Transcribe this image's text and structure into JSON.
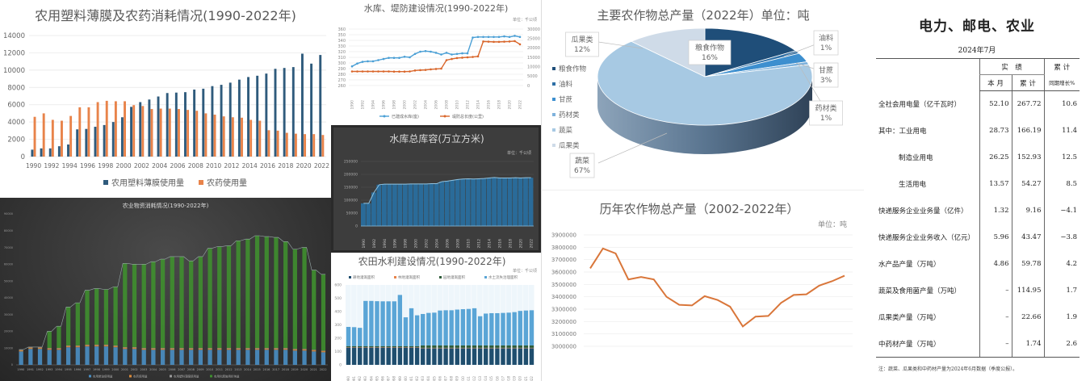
{
  "chart_data": [
    {
      "id": "film-pesticide",
      "type": "bar",
      "title": "农用塑料薄膜及农药消耗情况(1990-2022年)",
      "categories": [
        "1990",
        "1991",
        "1992",
        "1993",
        "1994",
        "1995",
        "1996",
        "1997",
        "1998",
        "1999",
        "2000",
        "2001",
        "2002",
        "2003",
        "2004",
        "2005",
        "2006",
        "2007",
        "2008",
        "2009",
        "2010",
        "2011",
        "2012",
        "2013",
        "2014",
        "2015",
        "2016",
        "2017",
        "2018",
        "2019",
        "2020",
        "2021",
        "2022"
      ],
      "ylim": [
        0,
        14000
      ],
      "yticks": [
        "0",
        "2000",
        "4000",
        "6000",
        "8000",
        "10000",
        "12000",
        "14000"
      ],
      "grid": true,
      "legend": "bottom",
      "series": [
        {
          "name": "农用塑料薄膜使用量",
          "color": "#2f5b7c",
          "values": [
            800,
            950,
            950,
            1200,
            1400,
            3150,
            3200,
            3450,
            3650,
            4000,
            4550,
            5750,
            6300,
            6600,
            6950,
            7350,
            7400,
            7450,
            7750,
            7850,
            8150,
            8300,
            8550,
            8900,
            9200,
            9350,
            9600,
            10150,
            10250,
            10350,
            11900,
            10750,
            11750
          ]
        },
        {
          "name": "农药使用量",
          "color": "#e8834a",
          "values": [
            4600,
            5000,
            4250,
            4150,
            4700,
            5700,
            5700,
            6300,
            6450,
            6400,
            6400,
            5950,
            5850,
            5500,
            5550,
            5550,
            5500,
            5400,
            5300,
            5000,
            4850,
            4650,
            4550,
            4500,
            4250,
            4150,
            3050,
            3000,
            2750,
            2650,
            2600,
            2600,
            2500
          ]
        }
      ]
    },
    {
      "id": "reservoir-dike",
      "type": "line",
      "title": "水库、堤防建设情况(1990-2022年)",
      "unit": "单位：千公顷",
      "categories": [
        "1990",
        "1991",
        "1992",
        "1993",
        "1994",
        "1995",
        "1996",
        "1997",
        "1998",
        "1999",
        "2000",
        "2001",
        "2002",
        "2003",
        "2004",
        "2005",
        "2006",
        "2007",
        "2008",
        "2009",
        "2010",
        "2011",
        "2012",
        "2013",
        "2014",
        "2015",
        "2016",
        "2017",
        "2018",
        "2019",
        "2020",
        "2021",
        "2022"
      ],
      "ylim_left": [
        260,
        360
      ],
      "yticks_left": [
        "260",
        "270",
        "280",
        "290",
        "300",
        "310",
        "320",
        "330",
        "340",
        "350",
        "360"
      ],
      "ylim_right": [
        0,
        30000
      ],
      "yticks_right": [
        "0",
        "5000",
        "10000",
        "15000",
        "20000",
        "25000",
        "30000"
      ],
      "legend": "bottom",
      "series": [
        {
          "name": "已建成水库(座)",
          "axis": "left",
          "color": "#4a9fd5",
          "values": [
            294,
            299,
            302,
            303,
            303,
            305,
            307,
            309,
            309,
            309,
            311,
            310,
            316,
            320,
            321,
            320,
            318,
            315,
            318,
            315,
            316,
            317,
            317,
            345,
            346,
            346,
            346,
            346,
            346,
            347,
            346,
            348,
            346
          ]
        },
        {
          "name": "堤防总长度(公里)",
          "axis": "right",
          "color": "#d9662b",
          "values": [
            7500,
            7500,
            7500,
            7500,
            7500,
            7500,
            7500,
            7500,
            7400,
            7400,
            7400,
            7500,
            8000,
            8200,
            8300,
            8600,
            8800,
            9000,
            13500,
            14100,
            14600,
            14800,
            15000,
            15200,
            15500,
            23400,
            23300,
            23200,
            23200,
            23300,
            23400,
            23600,
            21900
          ]
        }
      ]
    },
    {
      "id": "reservoir-capacity",
      "type": "area",
      "title": "水库总库容(万立方米)",
      "unit": "单位：千公顷",
      "categories": [
        "1990",
        "1991",
        "1992",
        "1993",
        "1994",
        "1995",
        "1996",
        "1997",
        "1998",
        "1999",
        "2000",
        "2001",
        "2002",
        "2003",
        "2004",
        "2005",
        "2006",
        "2007",
        "2008",
        "2009",
        "2010",
        "2011",
        "2012",
        "2013",
        "2014",
        "2015",
        "2016",
        "2017",
        "2018",
        "2019",
        "2020",
        "2021",
        "2022"
      ],
      "ylim": [
        0,
        250000
      ],
      "yticks": [
        "0",
        "50000",
        "100000",
        "150000",
        "200000",
        "250000"
      ],
      "grid": true,
      "values": [
        88000,
        88000,
        130000,
        160000,
        162000,
        162000,
        162000,
        162000,
        162000,
        163000,
        163000,
        163000,
        163000,
        164000,
        164000,
        172000,
        174000,
        177000,
        180000,
        182000,
        183000,
        182000,
        183000,
        184000,
        186000,
        188000,
        186000,
        186000,
        186000,
        187000,
        186000,
        187000,
        187000
      ]
    },
    {
      "id": "farm-irrigation",
      "type": "bar",
      "stacked": true,
      "title": "农田水利建设情况(1990-2022年)",
      "unit": "单位：千公顷",
      "categories": [
        "1990",
        "1991",
        "1992",
        "1993",
        "1994",
        "1995",
        "1996",
        "1997",
        "1998",
        "1999",
        "2000",
        "2001",
        "2002",
        "2003",
        "2004",
        "2005",
        "2006",
        "2007",
        "2008",
        "2009",
        "2010",
        "2011",
        "2012",
        "2013",
        "2014",
        "2015",
        "2016",
        "2017",
        "2018",
        "2019",
        "2020",
        "2021",
        "2022"
      ],
      "ylim": [
        0,
        600
      ],
      "yticks": [
        "0",
        "100",
        "200",
        "300",
        "400",
        "500",
        "600"
      ],
      "legend": "top",
      "series": [
        {
          "name": "耕地灌溉面积",
          "color": "#1f4e6e",
          "values": [
            130,
            130,
            130,
            130,
            130,
            130,
            130,
            130,
            130,
            130,
            130,
            130,
            130,
            125,
            125,
            125,
            125,
            125,
            125,
            125,
            125,
            125,
            125,
            125,
            125,
            125,
            125,
            125,
            125,
            125,
            125,
            125,
            125
          ]
        },
        {
          "name": "林地灌溉面积",
          "color": "#e8834a",
          "values": [
            3,
            3,
            3,
            3,
            3,
            3,
            3,
            3,
            3,
            3,
            3,
            3,
            3,
            3,
            3,
            3,
            3,
            3,
            3,
            3,
            3,
            3,
            3,
            3,
            3,
            3,
            3,
            3,
            3,
            3,
            3,
            3,
            3
          ]
        },
        {
          "name": "园地灌溉面积",
          "color": "#2f5d3a",
          "values": [
            8,
            8,
            8,
            8,
            8,
            8,
            8,
            8,
            8,
            8,
            8,
            8,
            8,
            18,
            18,
            18,
            18,
            18,
            18,
            18,
            18,
            18,
            18,
            18,
            18,
            18,
            18,
            18,
            18,
            18,
            18,
            18,
            18
          ]
        },
        {
          "name": "水土流失治理面积",
          "color": "#5aa5d6",
          "values": [
            144,
            142,
            137,
            339,
            339,
            337,
            336,
            336,
            336,
            384,
            216,
            284,
            231,
            236,
            244,
            246,
            262,
            264,
            264,
            269,
            272,
            274,
            279,
            219,
            239,
            242,
            242,
            244,
            246,
            250,
            259,
            262,
            264
          ]
        }
      ]
    },
    {
      "id": "agri-materials",
      "type": "bar",
      "stacked": true,
      "title": "农业物资消耗情况(1990-2022年)",
      "categories": [
        "1990",
        "1991",
        "1992",
        "1993",
        "1994",
        "1995",
        "1996",
        "1997",
        "1998",
        "1999",
        "2000",
        "2001",
        "2002",
        "2003",
        "2004",
        "2005",
        "2006",
        "2007",
        "2008",
        "2009",
        "2010",
        "2011",
        "2012",
        "2013",
        "2014",
        "2015",
        "2016",
        "2017",
        "2018",
        "2019",
        "2020",
        "2021",
        "2022"
      ],
      "ylim": [
        0,
        90000
      ],
      "yticks": [
        "0",
        "10000",
        "20000",
        "30000",
        "40000",
        "50000",
        "60000",
        "70000",
        "80000",
        "90000"
      ],
      "legend": "bottom",
      "series": [
        {
          "name": "农用柴油使用量",
          "color": "#4a8fc4",
          "values": [
            8000,
            9500,
            9500,
            9000,
            9000,
            10500,
            10500,
            11000,
            11000,
            11000,
            10500,
            9500,
            9500,
            9000,
            9000,
            9000,
            9000,
            9000,
            9000,
            9000,
            9000,
            9000,
            9000,
            9000,
            9000,
            9000,
            9000,
            9000,
            9000,
            8500,
            8500,
            8000,
            7500
          ]
        },
        {
          "name": "农药使用量",
          "color": "#d98a3a",
          "values": [
            800,
            800,
            800,
            800,
            800,
            800,
            800,
            800,
            800,
            800,
            800,
            800,
            800,
            800,
            800,
            800,
            800,
            800,
            800,
            800,
            800,
            800,
            800,
            800,
            800,
            800,
            800,
            800,
            800,
            800,
            800,
            800,
            800
          ]
        },
        {
          "name": "农用塑料薄膜使用量",
          "color": "#9a9a9a",
          "values": [
            300,
            300,
            300,
            300,
            300,
            300,
            300,
            300,
            300,
            300,
            300,
            300,
            300,
            300,
            300,
            300,
            300,
            300,
            300,
            300,
            300,
            300,
            300,
            300,
            300,
            300,
            300,
            300,
            300,
            300,
            300,
            300,
            300
          ]
        },
        {
          "name": "农用化肥施用折纯量",
          "color": "#3f8f2f",
          "values": [
            0,
            0,
            0,
            9900,
            12900,
            22900,
            25400,
            32400,
            33400,
            32900,
            34900,
            49900,
            49400,
            49900,
            51400,
            52900,
            54400,
            54400,
            51900,
            54400,
            59400,
            60400,
            60900,
            63900,
            64900,
            66900,
            66400,
            65900,
            63400,
            59400,
            60400,
            47400,
            45400
          ]
        }
      ]
    },
    {
      "id": "crop-share",
      "type": "pie",
      "title": "主要农作物总产量（2022年）单位：吨",
      "legend": "left",
      "slices": [
        {
          "name": "粮食作物",
          "pct": 16,
          "label": "16%",
          "color": "#1f4e79"
        },
        {
          "name": "油料",
          "pct": 1,
          "label": "1%",
          "color": "#2e6fa6"
        },
        {
          "name": "甘蔗",
          "pct": 3,
          "label": "3%",
          "color": "#3d8fcf"
        },
        {
          "name": "药材类",
          "pct": 1,
          "label": "1%",
          "color": "#7fb2dc"
        },
        {
          "name": "蔬菜",
          "pct": 67,
          "label": "67%",
          "color": "#a7c9e3"
        },
        {
          "name": "瓜果类",
          "pct": 12,
          "label": "12%",
          "color": "#cfdbe8"
        }
      ]
    },
    {
      "id": "crop-total",
      "type": "line",
      "title": "历年农作物总产量（2002-2022年）",
      "unit": "单位：吨",
      "x": [
        "2002",
        "2003",
        "2004",
        "2005",
        "2006",
        "2007",
        "2008",
        "2009",
        "2010",
        "2011",
        "2012",
        "2013",
        "2014",
        "2015",
        "2016",
        "2017",
        "2018",
        "2019",
        "2020",
        "2021",
        "2022"
      ],
      "ylim": [
        3000000,
        3900000
      ],
      "yticks": [
        "3000000",
        "3100000",
        "3200000",
        "3300000",
        "3400000",
        "3500000",
        "3600000",
        "3700000",
        "3800000",
        "3900000"
      ],
      "grid": true,
      "series": [
        {
          "color": "#d9763a",
          "values": [
            3630000,
            3790000,
            3750000,
            3540000,
            3560000,
            3540000,
            3400000,
            3335000,
            3330000,
            3405000,
            3375000,
            3320000,
            3160000,
            3240000,
            3245000,
            3350000,
            3415000,
            3420000,
            3490000,
            3525000,
            3570000
          ]
        }
      ]
    }
  ],
  "table": {
    "title": "电力、邮电、农业",
    "date": "2024年7月",
    "head_group": "实　绩",
    "head_month": "本 月",
    "head_cum": "累 计",
    "head_growth_top": "累 计",
    "head_growth_bot": "同期增长%",
    "rows": [
      {
        "label": "全社会用电量（亿千瓦时）",
        "month": "52.10",
        "cum": "267.72",
        "growth": "10.6",
        "indent": false
      },
      {
        "label": "其中：工业用电",
        "month": "28.73",
        "cum": "166.19",
        "growth": "11.4",
        "indent": false
      },
      {
        "label": "制造业用电",
        "month": "26.25",
        "cum": "152.93",
        "growth": "12.5",
        "indent": true
      },
      {
        "label": "生活用电",
        "month": "13.57",
        "cum": "54.27",
        "growth": "8.5",
        "indent": true
      },
      {
        "label": "快递服务企业业务量（亿件）",
        "month": "1.32",
        "cum": "9.16",
        "growth": "−4.1",
        "indent": false
      },
      {
        "label": "快递服务企业业务收入（亿元）",
        "month": "5.96",
        "cum": "43.47",
        "growth": "−3.8",
        "indent": false
      },
      {
        "label": "水产品产量（万吨）",
        "month": "4.86",
        "cum": "59.78",
        "growth": "4.2",
        "indent": false
      },
      {
        "label": "蔬菜及食用菌产量（万吨）",
        "month": "–",
        "cum": "114.95",
        "growth": "1.7",
        "indent": false
      },
      {
        "label": "瓜果类产量（万吨）",
        "month": "–",
        "cum": "22.66",
        "growth": "1.9",
        "indent": false
      },
      {
        "label": "中药材产量（万吨）",
        "month": "–",
        "cum": "1.74",
        "growth": "2.6",
        "indent": false
      }
    ],
    "note": "注：蔬菜、瓜果类和中药材产量为2024年6月数据（季度公报）。"
  }
}
